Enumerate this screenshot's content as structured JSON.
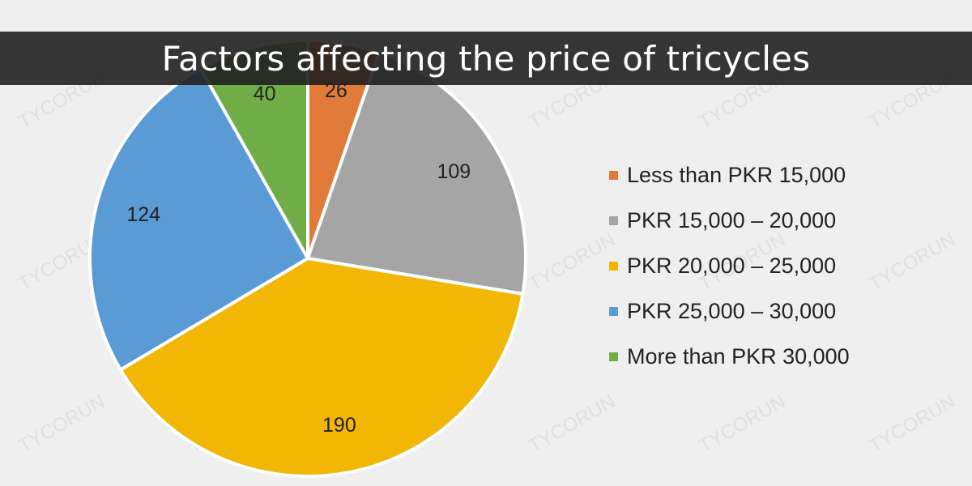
{
  "header": {
    "title": "Factors affecting the price of tricycles"
  },
  "watermark": "TYCORUN",
  "chart_data": {
    "type": "pie",
    "labels": [
      "Less than PKR 15,000",
      "PKR 15,000 – 20,000",
      "PKR 20,000 – 25,000",
      "PKR 25,000 – 30,000",
      "More than PKR 30,000"
    ],
    "values": [
      26,
      109,
      190,
      124,
      40
    ],
    "value_labels": [
      "26",
      "109",
      "190",
      "124",
      "40"
    ],
    "colors": [
      "#e07b39",
      "#a5a5a5",
      "#f2b705",
      "#5b9bd5",
      "#70ad47"
    ],
    "start_angle": "12 o'clock",
    "direction": "clockwise",
    "legend": "right"
  }
}
